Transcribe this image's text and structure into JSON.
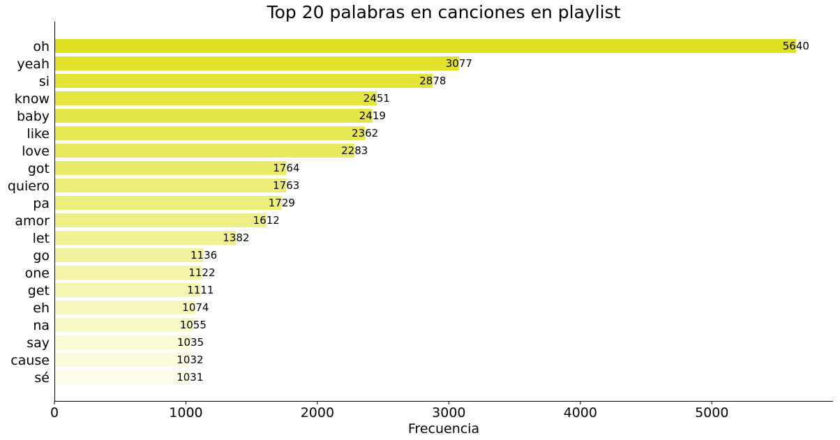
{
  "chart_data": {
    "type": "bar",
    "orientation": "horizontal",
    "title": "Top 20 palabras en canciones en playlist",
    "xlabel": "Frecuencia",
    "ylabel": "",
    "categories": [
      "oh",
      "yeah",
      "si",
      "know",
      "baby",
      "like",
      "love",
      "got",
      "quiero",
      "pa",
      "amor",
      "let",
      "go",
      "one",
      "get",
      "eh",
      "na",
      "say",
      "cause",
      "sé"
    ],
    "values": [
      5640,
      3077,
      2878,
      2451,
      2419,
      2362,
      2283,
      1764,
      1763,
      1729,
      1612,
      1382,
      1136,
      1122,
      1111,
      1074,
      1055,
      1035,
      1032,
      1031
    ],
    "xlim": [
      0,
      5922
    ],
    "xticks": [
      0,
      1000,
      2000,
      3000,
      4000,
      5000
    ],
    "grid": false,
    "legend": "none",
    "color_max": "#e0e020",
    "color_min": "#fdfde8"
  }
}
